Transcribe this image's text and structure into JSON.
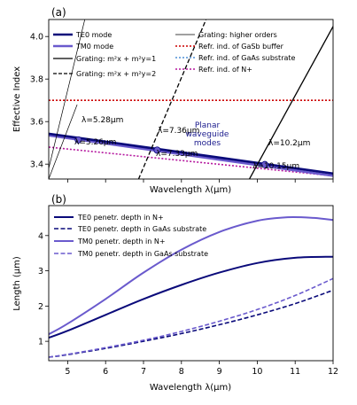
{
  "chart_data": [
    {
      "type": "line",
      "panel_label": "(a)",
      "xlabel": "Wavelength λ(μm)",
      "ylabel": "Effective Index",
      "xlim": [
        4.5,
        12
      ],
      "ylim": [
        3.33,
        4.08
      ],
      "yticks": [
        "3.4",
        "3.6",
        "3.8",
        "4.0"
      ],
      "x_tick_labels_shown": false,
      "legend_left": [
        "TE0 mode",
        "TM0 mode",
        "Grating: m²x + m²y=1",
        "Grating: m²x + m²y=2"
      ],
      "legend_right": [
        "Grating: higher orders",
        "Refr. ind. of GaSb buffer",
        "Refr. ind. of GaAs substrate",
        "Refr. ind. of N+"
      ],
      "region_label": [
        "Planar",
        "waveguide",
        "modes"
      ],
      "colors": {
        "TE0": "#0a0a7a",
        "TM0": "#6a5acd",
        "GaSb": "#cc0000",
        "GaAs": "#4f8fd6",
        "Nplus": "#b5179e"
      },
      "series": [
        {
          "name": "TE0 mode",
          "x": [
            4.5,
            12
          ],
          "y": [
            3.543,
            3.356
          ]
        },
        {
          "name": "TM0 mode",
          "x": [
            4.5,
            12
          ],
          "y": [
            3.535,
            3.345
          ]
        },
        {
          "name": "Refr. ind. of GaSb buffer",
          "x": [
            4.5,
            12
          ],
          "y": [
            3.7,
            3.7
          ]
        },
        {
          "name": "Refr. ind. of GaAs substrate",
          "x": [
            4.5,
            12
          ],
          "y": [
            3.31,
            3.29
          ]
        },
        {
          "name": "Refr. ind. of N+",
          "x": [
            4.5,
            12
          ],
          "y": [
            3.48,
            3.345
          ]
        },
        {
          "name": "Grating: m²x + m²y=1",
          "x": [
            9.7,
            12.1
          ],
          "y": [
            3.3,
            4.08
          ]
        },
        {
          "name": "Grating: m²x + m²y=2",
          "x": [
            6.8,
            8.65
          ],
          "y": [
            3.3,
            4.08
          ]
        },
        {
          "name": "Grating: higher orders",
          "lines": [
            {
              "x": [
                4.5,
                5.45
              ],
              "y": [
                3.38,
                4.08
              ]
            },
            {
              "x": [
                4.5,
                5.25
              ],
              "y": [
                3.33,
                3.68
              ]
            }
          ]
        }
      ],
      "annotations": [
        {
          "text": "λ=5.28μm",
          "x": 5.28,
          "y": 3.52
        },
        {
          "text": "λ=5.26μm",
          "x": 5.26,
          "y": 3.52
        },
        {
          "text": "λ=7.36μm",
          "x": 7.36,
          "y": 3.47
        },
        {
          "text": "λ=7.33μm",
          "x": 7.33,
          "y": 3.47
        },
        {
          "text": "λ=10.2μm",
          "x": 10.2,
          "y": 3.4
        },
        {
          "text": "λ=10.15μm",
          "x": 10.15,
          "y": 3.39
        }
      ]
    },
    {
      "type": "line",
      "panel_label": "(b)",
      "xlabel": "Wavelength λ(μm)",
      "ylabel": "Length (μm)",
      "xlim": [
        4.5,
        12
      ],
      "ylim": [
        0.45,
        4.85
      ],
      "xticks": [
        "5",
        "6",
        "7",
        "8",
        "9",
        "10",
        "11",
        "12"
      ],
      "yticks": [
        "1",
        "2",
        "3",
        "4"
      ],
      "legend_position": "top-left",
      "series": [
        {
          "name": "TE0 penetr. depth in N+",
          "style": "solid",
          "color": "#0a0a7a",
          "x": [
            4.5,
            5,
            6,
            7,
            8,
            9,
            10,
            11,
            12
          ],
          "y": [
            1.1,
            1.3,
            1.75,
            2.2,
            2.6,
            2.95,
            3.22,
            3.37,
            3.4
          ]
        },
        {
          "name": "TE0 penetr. depth in GaAs substrate",
          "style": "dashed",
          "color": "#0a0a7a",
          "x": [
            4.5,
            5,
            6,
            7,
            8,
            9,
            10,
            11,
            12
          ],
          "y": [
            0.55,
            0.62,
            0.8,
            1.0,
            1.22,
            1.47,
            1.75,
            2.07,
            2.45
          ]
        },
        {
          "name": "TM0 penetr. depth in N+",
          "style": "solid",
          "color": "#6a5acd",
          "x": [
            4.5,
            5,
            6,
            7,
            8,
            9,
            10,
            10.8,
            11.5,
            12
          ],
          "y": [
            1.2,
            1.5,
            2.2,
            2.95,
            3.6,
            4.1,
            4.42,
            4.52,
            4.5,
            4.44
          ]
        },
        {
          "name": "TM0 penetr. depth in GaAs substrate",
          "style": "dashed",
          "color": "#6a5acd",
          "x": [
            4.5,
            5,
            6,
            7,
            8,
            9,
            10,
            11,
            12
          ],
          "y": [
            0.55,
            0.63,
            0.82,
            1.03,
            1.28,
            1.57,
            1.9,
            2.3,
            2.78
          ]
        }
      ]
    }
  ]
}
